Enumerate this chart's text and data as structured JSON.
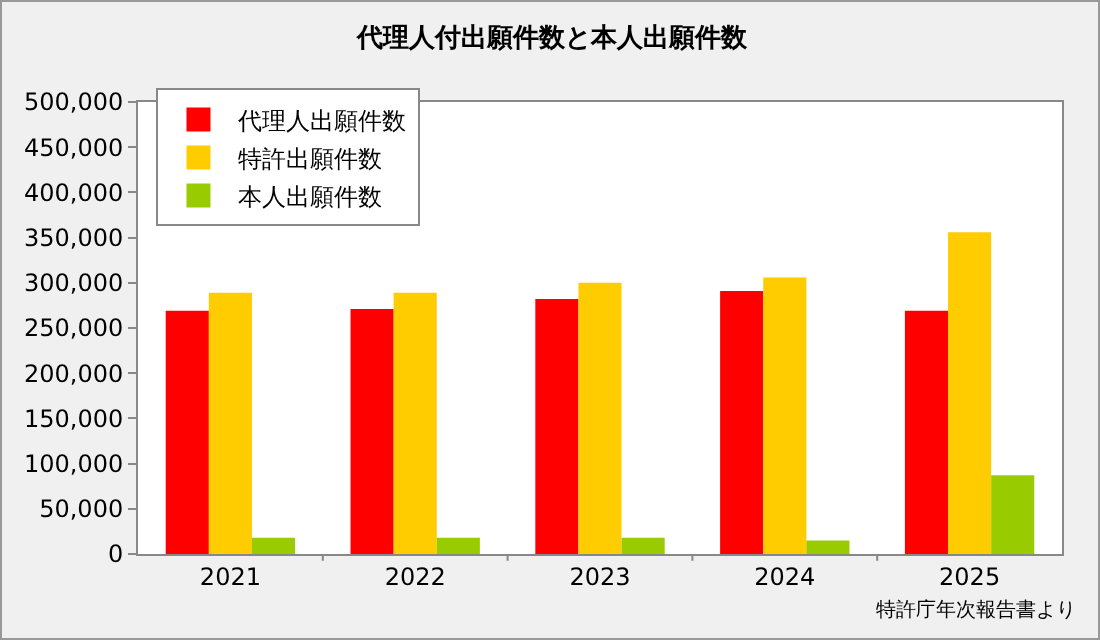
{
  "chart_data": {
    "type": "bar",
    "title": "代理人付出願件数と本人出願件数",
    "categories": [
      "2021",
      "2022",
      "2023",
      "2024",
      "2025"
    ],
    "series": [
      {
        "name": "代理人出願件数",
        "color": "#ff0000",
        "values": [
          269000,
          271000,
          282000,
          291000,
          269000
        ]
      },
      {
        "name": "特許出願件数",
        "color": "#ffcc00",
        "values": [
          289000,
          289000,
          300000,
          306000,
          356000
        ]
      },
      {
        "name": "本人出願件数",
        "color": "#99cc00",
        "values": [
          18000,
          18000,
          18000,
          15000,
          87000
        ]
      }
    ],
    "ylim": [
      0,
      500000
    ],
    "yticks": [
      {
        "value": 0,
        "label": "0"
      },
      {
        "value": 50000,
        "label": "50,000"
      },
      {
        "value": 100000,
        "label": "100,000"
      },
      {
        "value": 150000,
        "label": "150,000"
      },
      {
        "value": 200000,
        "label": "200,000"
      },
      {
        "value": 250000,
        "label": "250,000"
      },
      {
        "value": 300000,
        "label": "300,000"
      },
      {
        "value": 350000,
        "label": "350,000"
      },
      {
        "value": 400000,
        "label": "400,000"
      },
      {
        "value": 450000,
        "label": "450,000"
      },
      {
        "value": 500000,
        "label": "500,000"
      }
    ],
    "grid": false,
    "legend": "top left",
    "annotations": [
      "特許庁年次報告書より"
    ]
  }
}
